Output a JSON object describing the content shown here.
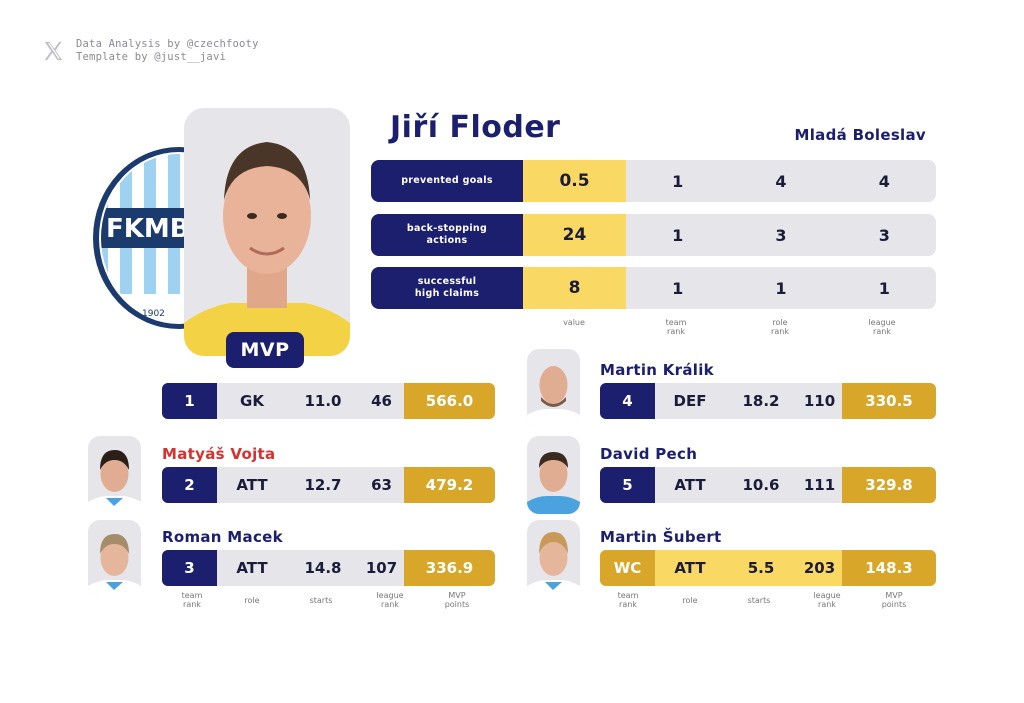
{
  "credits": {
    "line1": "Data Analysis by @czechfooty",
    "line2": "Template by @just__javi"
  },
  "crest": {
    "text": "FKMB",
    "year": "1902"
  },
  "main_player": {
    "name": "Jiří Floder",
    "club": "Mladá Boleslav",
    "badge": "MVP",
    "stats": [
      {
        "label": "prevented goals",
        "value": "0.5",
        "team_rank": "1",
        "role_rank": "4",
        "league_rank": "4"
      },
      {
        "label": "back-stopping\nactions",
        "value": "24",
        "team_rank": "1",
        "role_rank": "3",
        "league_rank": "3"
      },
      {
        "label": "successful\nhigh claims",
        "value": "8",
        "team_rank": "1",
        "role_rank": "1",
        "league_rank": "1"
      }
    ],
    "stat_headers": {
      "value": "value",
      "team_rank": "team\nrank",
      "role_rank": "role\nrank",
      "league_rank": "league\nrank"
    },
    "row": {
      "rank": "1",
      "role": "GK",
      "starts": "11.0",
      "league_rank": "46",
      "mvp_points": "566.0"
    }
  },
  "left_players": [
    {
      "name": "Matyáš Vojta",
      "rank": "2",
      "role": "ATT",
      "starts": "12.7",
      "league_rank": "63",
      "mvp_points": "479.2"
    },
    {
      "name": "Roman Macek",
      "rank": "3",
      "role": "ATT",
      "starts": "14.8",
      "league_rank": "107",
      "mvp_points": "336.9"
    }
  ],
  "right_players": [
    {
      "name": "Martin Králik",
      "rank": "4",
      "role": "DEF",
      "starts": "18.2",
      "league_rank": "110",
      "mvp_points": "330.5"
    },
    {
      "name": "David Pech",
      "rank": "5",
      "role": "ATT",
      "starts": "10.6",
      "league_rank": "111",
      "mvp_points": "329.8"
    },
    {
      "name": "Martin Šubert",
      "rank": "WC",
      "role": "ATT",
      "starts": "5.5",
      "league_rank": "203",
      "mvp_points": "148.3"
    }
  ],
  "column_headers": {
    "team_rank": "team\nrank",
    "role": "role",
    "starts": "starts",
    "league_rank": "league\nrank",
    "mvp_points": "MVP\npoints"
  },
  "colors": {
    "navy": "#1b1f6e",
    "gold": "#d8a72a",
    "yellow": "#fad864",
    "grey": "#e6e6ea",
    "red": "#d6322f"
  }
}
